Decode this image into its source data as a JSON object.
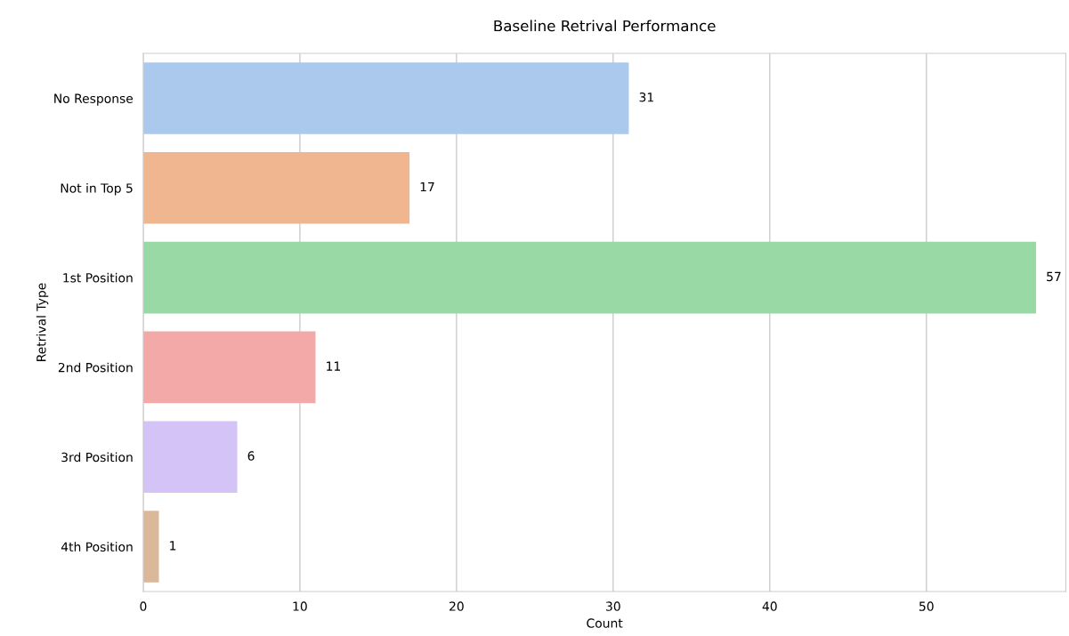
{
  "chart_data": {
    "type": "bar",
    "orientation": "horizontal",
    "title": "Baseline Retrival Performance",
    "xlabel": "Count",
    "ylabel": "Retrival Type",
    "categories": [
      "No Response",
      "Not in Top 5",
      "1st Position",
      "2nd Position",
      "3rd Position",
      "4th Position"
    ],
    "values": [
      31,
      17,
      57,
      11,
      6,
      1
    ],
    "colors": [
      "#abc9ed",
      "#f0b690",
      "#98d9a6",
      "#f2a9a7",
      "#d3c3f6",
      "#dbb89a"
    ],
    "data_labels": true,
    "xlim": [
      0,
      58.9
    ],
    "xticks": [
      0,
      10,
      20,
      30,
      40,
      50
    ],
    "grid": "x",
    "legend": false
  }
}
